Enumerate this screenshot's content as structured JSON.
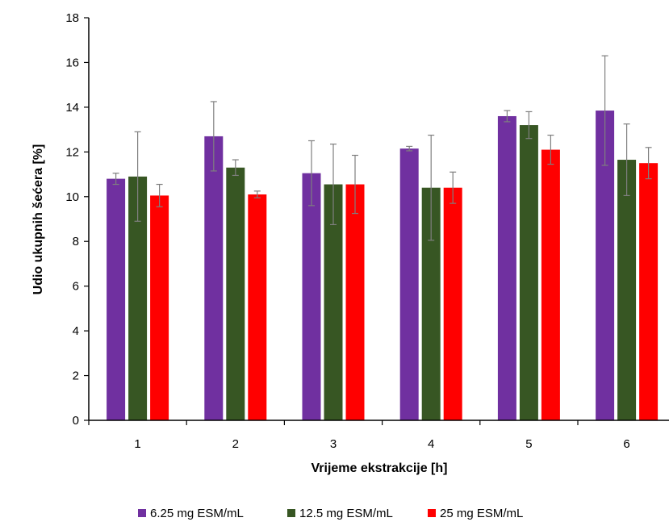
{
  "chart_data": {
    "type": "bar",
    "xlabel": "Vrijeme ekstrakcije [h]",
    "ylabel": "Udio ukupnih šećera [%]",
    "categories": [
      "1",
      "2",
      "3",
      "4",
      "5",
      "6"
    ],
    "ylim": [
      0,
      18
    ],
    "yticks": [
      "0",
      "2",
      "4",
      "6",
      "8",
      "10",
      "12",
      "14",
      "16",
      "18"
    ],
    "grid": false,
    "legend_position": "bottom",
    "series": [
      {
        "name": "6.25 mg ESM/mL",
        "color": "#7030a0",
        "values": [
          10.8,
          12.7,
          11.05,
          12.15,
          13.6,
          13.85
        ],
        "errors": [
          0.25,
          1.55,
          1.45,
          0.1,
          0.25,
          2.45
        ]
      },
      {
        "name": "12.5 mg ESM/mL",
        "color": "#375623",
        "values": [
          10.9,
          11.3,
          10.55,
          10.4,
          13.2,
          11.65
        ],
        "errors": [
          2.0,
          0.35,
          1.8,
          2.35,
          0.6,
          1.6
        ]
      },
      {
        "name": "25 mg ESM/mL",
        "color": "#ff0000",
        "values": [
          10.05,
          10.1,
          10.55,
          10.4,
          12.1,
          11.5
        ],
        "errors": [
          0.5,
          0.15,
          1.3,
          0.7,
          0.65,
          0.7
        ]
      }
    ]
  }
}
